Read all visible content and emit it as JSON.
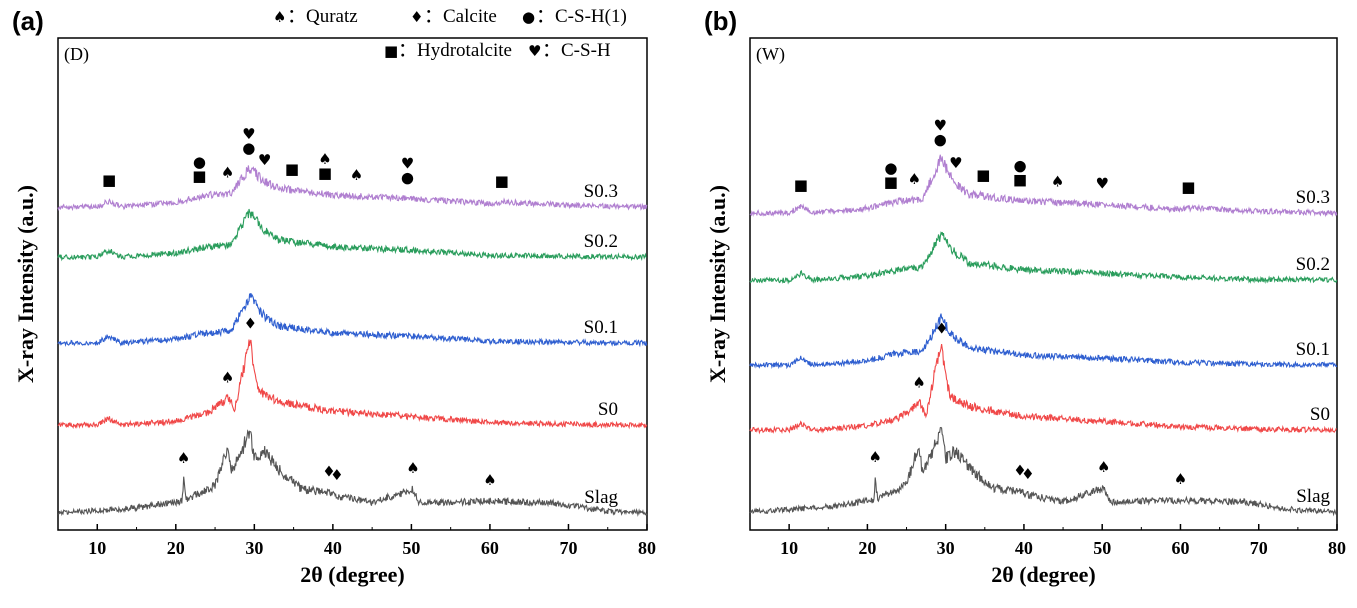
{
  "chart_data": [
    {
      "type": "line",
      "panel_label": "(a)",
      "condition_label": "(D)",
      "xlabel": "2θ (degree)",
      "ylabel": "X-ray Intensity (a.u.)",
      "xlim": [
        5,
        80
      ],
      "x_ticks": [
        "10",
        "20",
        "30",
        "40",
        "50",
        "60",
        "70",
        "80"
      ],
      "y_ticks": "none",
      "legend": {
        "position": "top-right",
        "row1": [
          {
            "symbol": "♠",
            "text": "：Quratz"
          },
          {
            "symbol": "♦",
            "text": "：Calcite"
          },
          {
            "symbol": "●",
            "text": "：C-S-H(1)"
          }
        ],
        "row2": [
          {
            "symbol": "■",
            "text": "：Hydrotalcite"
          },
          {
            "symbol": "♥",
            "text": "：C-S-H"
          }
        ]
      },
      "series": [
        {
          "name": "S0.3",
          "color": "#b07fd0",
          "profile": [
            [
              5,
              0.0
            ],
            [
              10,
              0.0
            ],
            [
              11.5,
              0.18
            ],
            [
              13,
              0.0
            ],
            [
              20,
              0.14
            ],
            [
              24,
              0.35
            ],
            [
              27,
              0.4
            ],
            [
              29.4,
              1.15
            ],
            [
              31,
              0.8
            ],
            [
              33,
              0.55
            ],
            [
              40,
              0.35
            ],
            [
              50,
              0.25
            ],
            [
              60,
              0.1
            ],
            [
              61.5,
              0.15
            ],
            [
              70,
              0.05
            ],
            [
              80,
              0.0
            ]
          ]
        },
        {
          "name": "S0.2",
          "color": "#2a9d5c",
          "profile": [
            [
              5,
              0.0
            ],
            [
              10,
              0.0
            ],
            [
              11.5,
              0.2
            ],
            [
              13,
              0.0
            ],
            [
              20,
              0.12
            ],
            [
              24,
              0.3
            ],
            [
              27,
              0.35
            ],
            [
              29.4,
              1.35
            ],
            [
              31,
              0.85
            ],
            [
              33,
              0.5
            ],
            [
              40,
              0.3
            ],
            [
              50,
              0.2
            ],
            [
              60,
              0.05
            ],
            [
              70,
              0.02
            ],
            [
              80,
              0.0
            ]
          ]
        },
        {
          "name": "S0.1",
          "color": "#2f5fd0",
          "profile": [
            [
              5,
              0.0
            ],
            [
              10,
              0.0
            ],
            [
              11.5,
              0.2
            ],
            [
              13,
              0.0
            ],
            [
              20,
              0.12
            ],
            [
              24,
              0.3
            ],
            [
              27,
              0.35
            ],
            [
              29.4,
              1.35
            ],
            [
              31,
              0.85
            ],
            [
              33,
              0.5
            ],
            [
              40,
              0.3
            ],
            [
              50,
              0.2
            ],
            [
              60,
              0.05
            ],
            [
              70,
              0.02
            ],
            [
              80,
              0.0
            ]
          ]
        },
        {
          "name": "S0",
          "color": "#f04848",
          "profile": [
            [
              5,
              0.0
            ],
            [
              10,
              0.0
            ],
            [
              11.5,
              0.2
            ],
            [
              13,
              0.0
            ],
            [
              20,
              0.12
            ],
            [
              24,
              0.35
            ],
            [
              26.7,
              0.8
            ],
            [
              27.5,
              0.45
            ],
            [
              29.4,
              2.5
            ],
            [
              30.5,
              1.0
            ],
            [
              33,
              0.7
            ],
            [
              40,
              0.4
            ],
            [
              50,
              0.25
            ],
            [
              60,
              0.08
            ],
            [
              70,
              0.02
            ],
            [
              80,
              0.0
            ]
          ]
        },
        {
          "name": "Slag",
          "color": "#555555",
          "profile": [
            [
              5,
              0.0
            ],
            [
              15,
              0.15
            ],
            [
              20.8,
              0.35
            ],
            [
              21,
              1.0
            ],
            [
              21.3,
              0.4
            ],
            [
              25,
              0.8
            ],
            [
              26.6,
              2.0
            ],
            [
              27,
              1.2
            ],
            [
              28,
              1.6
            ],
            [
              29.4,
              2.4
            ],
            [
              30,
              1.6
            ],
            [
              31.3,
              1.8
            ],
            [
              33,
              1.3
            ],
            [
              36,
              0.7
            ],
            [
              39.5,
              0.6
            ],
            [
              40.5,
              0.5
            ],
            [
              45,
              0.3
            ],
            [
              50.2,
              0.7
            ],
            [
              51,
              0.3
            ],
            [
              60,
              0.35
            ],
            [
              68,
              0.3
            ],
            [
              75,
              0.05
            ],
            [
              80,
              0.0
            ]
          ]
        }
      ],
      "annotations": [
        {
          "symbol": "■",
          "x": 11.5,
          "series": "S0.3"
        },
        {
          "symbol": "■",
          "x": 23.0,
          "series": "S0.3"
        },
        {
          "symbol": "●",
          "x": 23.0,
          "series": "S0.3"
        },
        {
          "symbol": "♠",
          "x": 26.6,
          "series": "S0.3"
        },
        {
          "symbol": "●",
          "x": 29.3,
          "series": "S0.3"
        },
        {
          "symbol": "♥",
          "x": 29.3,
          "series": "S0.3"
        },
        {
          "symbol": "♥",
          "x": 31.3,
          "series": "S0.3"
        },
        {
          "symbol": "■",
          "x": 34.8,
          "series": "S0.3"
        },
        {
          "symbol": "■",
          "x": 39.0,
          "series": "S0.3"
        },
        {
          "symbol": "♠",
          "x": 39.0,
          "series": "S0.3"
        },
        {
          "symbol": "♠",
          "x": 43.0,
          "series": "S0.3"
        },
        {
          "symbol": "●",
          "x": 49.5,
          "series": "S0.3"
        },
        {
          "symbol": "♥",
          "x": 49.5,
          "series": "S0.3"
        },
        {
          "symbol": "■",
          "x": 61.5,
          "series": "S0.3"
        },
        {
          "symbol": "♠",
          "x": 26.6,
          "series": "S0"
        },
        {
          "symbol": "♦",
          "x": 29.5,
          "series": "S0"
        },
        {
          "symbol": "♠",
          "x": 21.0,
          "series": "Slag"
        },
        {
          "symbol": "♦",
          "x": 39.5,
          "series": "Slag"
        },
        {
          "symbol": "♦",
          "x": 40.5,
          "series": "Slag"
        },
        {
          "symbol": "♠",
          "x": 50.2,
          "series": "Slag"
        },
        {
          "symbol": "♠",
          "x": 60.0,
          "series": "Slag"
        }
      ]
    },
    {
      "type": "line",
      "panel_label": "(b)",
      "condition_label": "(W)",
      "xlabel": "2θ (degree)",
      "ylabel": "X-ray Intensity (a.u.)",
      "xlim": [
        5,
        80
      ],
      "x_ticks": [
        "10",
        "20",
        "30",
        "40",
        "50",
        "60",
        "70",
        "80"
      ],
      "y_ticks": "none",
      "legend": {
        "position": "top-right",
        "row1": [
          {
            "symbol": "♠",
            "text": "：Quratz"
          },
          {
            "symbol": "♦",
            "text": "：Calcite"
          },
          {
            "symbol": "●",
            "text": "：C-S-H(1)"
          }
        ],
        "row2": [
          {
            "symbol": "■",
            "text": "：Hydrotalcite"
          },
          {
            "symbol": "♥",
            "text": "：C-S-H"
          }
        ]
      },
      "series": [
        {
          "name": "S0.3",
          "color": "#b07fd0",
          "profile": [
            [
              5,
              0.0
            ],
            [
              10,
              0.0
            ],
            [
              11.5,
              0.2
            ],
            [
              13,
              0.0
            ],
            [
              20,
              0.14
            ],
            [
              24,
              0.35
            ],
            [
              27,
              0.4
            ],
            [
              29.4,
              1.6
            ],
            [
              31,
              0.9
            ],
            [
              33,
              0.55
            ],
            [
              40,
              0.35
            ],
            [
              50,
              0.25
            ],
            [
              60,
              0.1
            ],
            [
              61,
              0.15
            ],
            [
              70,
              0.05
            ],
            [
              80,
              0.0
            ]
          ]
        },
        {
          "name": "S0.2",
          "color": "#2a9d5c",
          "profile": [
            [
              5,
              0.0
            ],
            [
              10,
              0.0
            ],
            [
              11.5,
              0.2
            ],
            [
              13,
              0.0
            ],
            [
              20,
              0.12
            ],
            [
              24,
              0.3
            ],
            [
              27,
              0.35
            ],
            [
              29.4,
              1.35
            ],
            [
              31,
              0.85
            ],
            [
              33,
              0.5
            ],
            [
              40,
              0.3
            ],
            [
              50,
              0.2
            ],
            [
              60,
              0.08
            ],
            [
              70,
              0.02
            ],
            [
              80,
              0.0
            ]
          ]
        },
        {
          "name": "S0.1",
          "color": "#2f5fd0",
          "profile": [
            [
              5,
              0.0
            ],
            [
              10,
              0.0
            ],
            [
              11.5,
              0.22
            ],
            [
              13,
              0.0
            ],
            [
              20,
              0.12
            ],
            [
              24,
              0.35
            ],
            [
              27,
              0.4
            ],
            [
              29.4,
              1.35
            ],
            [
              31,
              0.85
            ],
            [
              33,
              0.5
            ],
            [
              40,
              0.3
            ],
            [
              50,
              0.2
            ],
            [
              60,
              0.08
            ],
            [
              70,
              0.02
            ],
            [
              80,
              0.0
            ]
          ]
        },
        {
          "name": "S0",
          "color": "#f04848",
          "profile": [
            [
              5,
              0.0
            ],
            [
              10,
              0.0
            ],
            [
              11.5,
              0.2
            ],
            [
              13,
              0.0
            ],
            [
              20,
              0.12
            ],
            [
              24,
              0.35
            ],
            [
              26.7,
              0.8
            ],
            [
              27.5,
              0.45
            ],
            [
              29.4,
              2.5
            ],
            [
              30.5,
              1.0
            ],
            [
              33,
              0.7
            ],
            [
              40,
              0.4
            ],
            [
              50,
              0.25
            ],
            [
              60,
              0.1
            ],
            [
              70,
              0.02
            ],
            [
              80,
              0.0
            ]
          ]
        },
        {
          "name": "Slag",
          "color": "#555555",
          "profile": [
            [
              5,
              0.0
            ],
            [
              15,
              0.15
            ],
            [
              20.8,
              0.35
            ],
            [
              21,
              1.0
            ],
            [
              21.3,
              0.4
            ],
            [
              25,
              0.8
            ],
            [
              26.6,
              2.0
            ],
            [
              27,
              1.2
            ],
            [
              28,
              1.6
            ],
            [
              29.4,
              2.4
            ],
            [
              30,
              1.6
            ],
            [
              31.3,
              1.8
            ],
            [
              33,
              1.3
            ],
            [
              36,
              0.7
            ],
            [
              39.5,
              0.6
            ],
            [
              40.5,
              0.5
            ],
            [
              45,
              0.3
            ],
            [
              50.2,
              0.7
            ],
            [
              51,
              0.3
            ],
            [
              60,
              0.35
            ],
            [
              68,
              0.3
            ],
            [
              75,
              0.05
            ],
            [
              80,
              0.0
            ]
          ]
        }
      ],
      "annotations": [
        {
          "symbol": "■",
          "x": 11.5,
          "series": "S0.3"
        },
        {
          "symbol": "■",
          "x": 23.0,
          "series": "S0.3"
        },
        {
          "symbol": "●",
          "x": 23.0,
          "series": "S0.3"
        },
        {
          "symbol": "♠",
          "x": 26.0,
          "series": "S0.3"
        },
        {
          "symbol": "●",
          "x": 29.3,
          "series": "S0.3"
        },
        {
          "symbol": "♥",
          "x": 29.3,
          "series": "S0.3"
        },
        {
          "symbol": "♥",
          "x": 31.3,
          "series": "S0.3"
        },
        {
          "symbol": "■",
          "x": 34.8,
          "series": "S0.3"
        },
        {
          "symbol": "■",
          "x": 39.5,
          "series": "S0.3"
        },
        {
          "symbol": "●",
          "x": 39.5,
          "series": "S0.3"
        },
        {
          "symbol": "♠",
          "x": 44.3,
          "series": "S0.3"
        },
        {
          "symbol": "♥",
          "x": 50.0,
          "series": "S0.3"
        },
        {
          "symbol": "■",
          "x": 61.0,
          "series": "S0.3"
        },
        {
          "symbol": "♠",
          "x": 26.6,
          "series": "S0"
        },
        {
          "symbol": "♦",
          "x": 29.5,
          "series": "S0"
        },
        {
          "symbol": "♠",
          "x": 21.0,
          "series": "Slag"
        },
        {
          "symbol": "♦",
          "x": 39.5,
          "series": "Slag"
        },
        {
          "symbol": "♦",
          "x": 40.5,
          "series": "Slag"
        },
        {
          "symbol": "♠",
          "x": 50.2,
          "series": "Slag"
        },
        {
          "symbol": "♠",
          "x": 60.0,
          "series": "Slag"
        }
      ]
    }
  ]
}
